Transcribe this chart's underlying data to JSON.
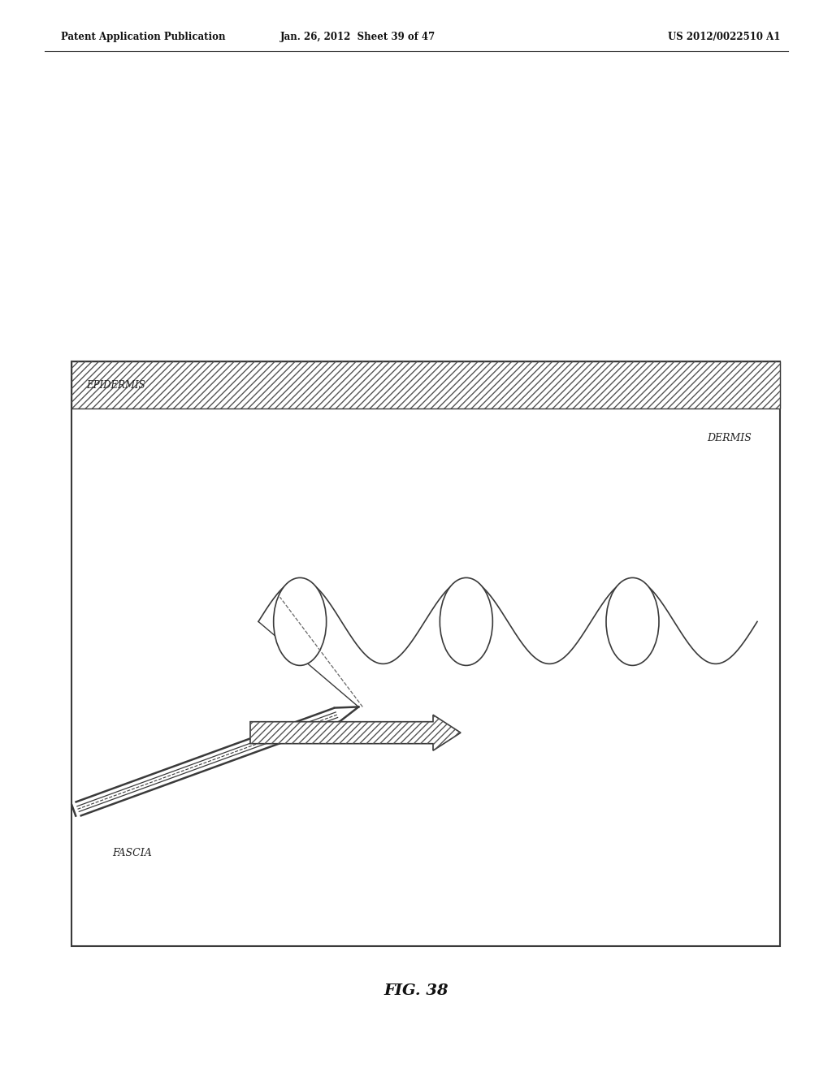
{
  "bg_color": "#ffffff",
  "page_width": 10.24,
  "page_height": 13.2,
  "header_text_left": "Patent Application Publication",
  "header_text_mid": "Jan. 26, 2012  Sheet 39 of 47",
  "header_text_right": "US 2012/0022510 A1",
  "fig_label": "FIG. 38",
  "epidermis_label": "EPIDERMIS",
  "dermis_label": "DERMIS",
  "fascia_label": "FASCIA",
  "lc": "#3a3a3a"
}
